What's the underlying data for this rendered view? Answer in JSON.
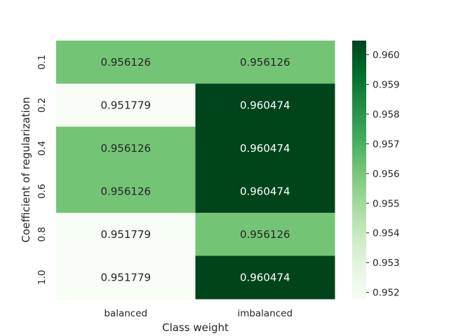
{
  "chart_data": {
    "type": "heatmap",
    "title": "",
    "xlabel": "Class weight",
    "ylabel": "Coefficient of regularization",
    "x_categories": [
      "balanced",
      "imbalanced"
    ],
    "y_categories": [
      "0.1",
      "0.2",
      "0.4",
      "0.6",
      "0.8",
      "1.0"
    ],
    "values": [
      [
        0.956126,
        0.956126
      ],
      [
        0.951779,
        0.960474
      ],
      [
        0.956126,
        0.960474
      ],
      [
        0.956126,
        0.960474
      ],
      [
        0.951779,
        0.956126
      ],
      [
        0.951779,
        0.960474
      ]
    ],
    "value_labels": [
      [
        "0.956126",
        "0.956126"
      ],
      [
        "0.951779",
        "0.960474"
      ],
      [
        "0.956126",
        "0.960474"
      ],
      [
        "0.956126",
        "0.960474"
      ],
      [
        "0.951779",
        "0.956126"
      ],
      [
        "0.951779",
        "0.960474"
      ]
    ],
    "colormap": "Greens",
    "colorbar": {
      "vmin": 0.951779,
      "vmax": 0.960474,
      "ticks": [
        0.952,
        0.953,
        0.954,
        0.955,
        0.956,
        0.957,
        0.958,
        0.959,
        0.96
      ],
      "tick_labels": [
        "0.952",
        "0.953",
        "0.954",
        "0.955",
        "0.956",
        "0.957",
        "0.958",
        "0.959",
        "0.960"
      ]
    },
    "text_colors": {
      "on_dark": "#ffffff",
      "on_light": "#262626"
    },
    "grid": false
  }
}
